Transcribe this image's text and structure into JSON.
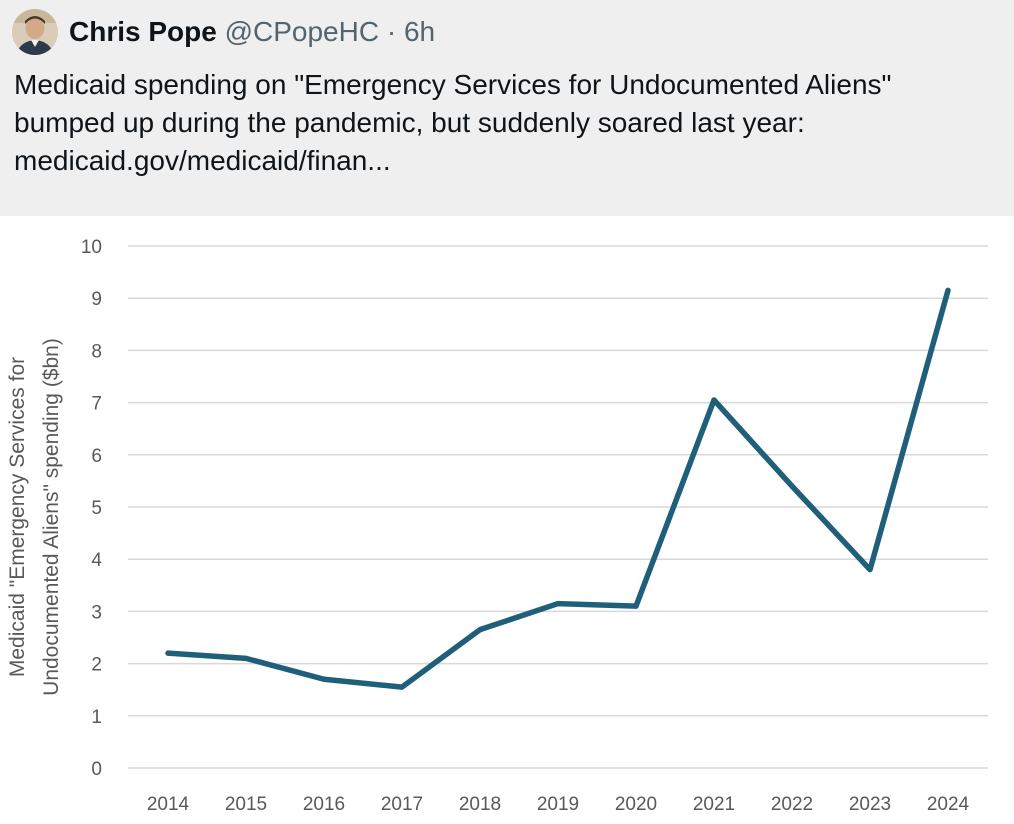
{
  "tweet": {
    "author_name": "Chris Pope",
    "author_handle": "@CPopeHC",
    "separator": "·",
    "age": "6h",
    "text_lines": [
      "Medicaid spending on \"Emergency Services for Undocumented Aliens\"",
      "bumped up during the pandemic, but suddenly soared last year:"
    ],
    "link_text": "medicaid.gov/medicaid/finan..."
  },
  "colors": {
    "line": "#1f5f7a",
    "grid": "#d9d9d9",
    "header_bg": "#efefef"
  },
  "chart_data": {
    "type": "line",
    "title": "",
    "xlabel": "",
    "ylabel_lines": [
      "Medicaid \"Emergency Services for",
      "Undocumented Aliens\" spending ($bn)"
    ],
    "categories": [
      "2014",
      "2015",
      "2016",
      "2017",
      "2018",
      "2019",
      "2020",
      "2021",
      "2022",
      "2023",
      "2024"
    ],
    "values": [
      2.2,
      2.1,
      1.7,
      1.55,
      2.65,
      3.15,
      3.1,
      7.05,
      5.4,
      3.8,
      9.15
    ],
    "ylim": [
      0,
      10
    ],
    "yticks": [
      "0",
      "1",
      "2",
      "3",
      "4",
      "5",
      "6",
      "7",
      "8",
      "9",
      "10"
    ],
    "grid": true
  }
}
